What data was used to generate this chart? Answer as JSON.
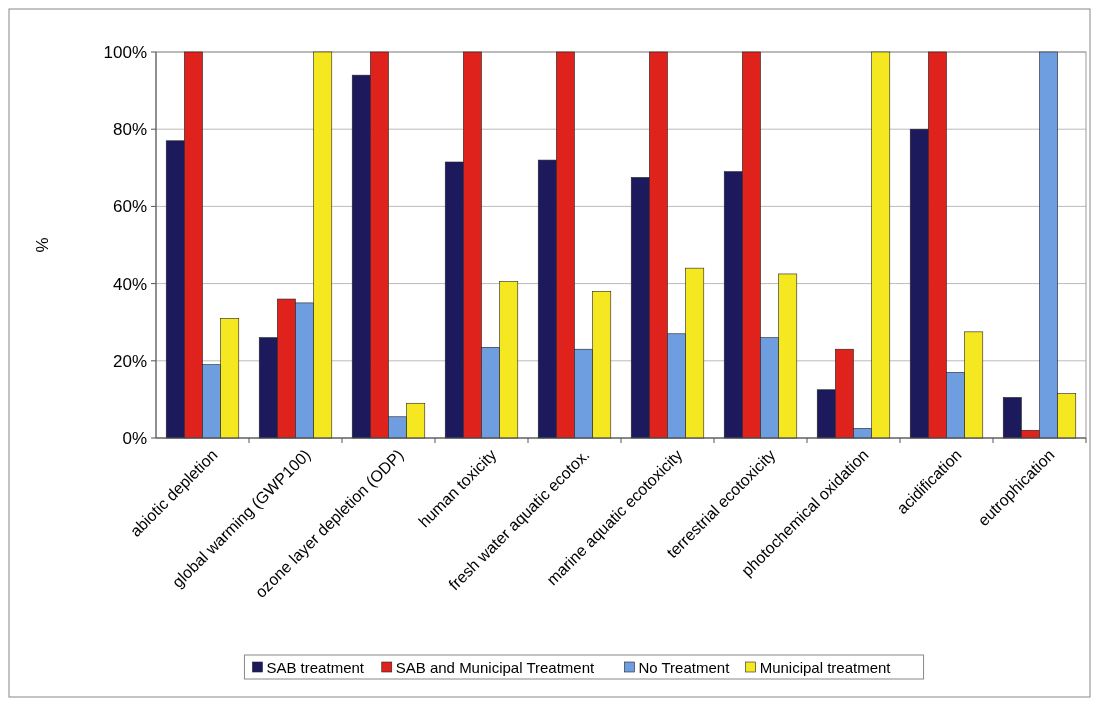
{
  "chart_data": {
    "type": "bar",
    "ylabel": "%",
    "categories": [
      "abiotic depletion",
      "global warming (GWP100)",
      "ozone layer depletion (ODP)",
      "human toxicity",
      "fresh water aquatic ecotox.",
      "marine aquatic ecotoxicity",
      "terrestrial ecotoxicity",
      "photochemical oxidation",
      "acidification",
      "eutrophication"
    ],
    "series": [
      {
        "name": "SAB treatment",
        "color": "#1c1a5c",
        "values": [
          77,
          26,
          94,
          71.5,
          72,
          67.5,
          69,
          12.5,
          80,
          10.5
        ]
      },
      {
        "name": "SAB and Municipal Treatment",
        "color": "#e0221c",
        "values": [
          100,
          36,
          100,
          100,
          100,
          100,
          100,
          23,
          100,
          2
        ]
      },
      {
        "name": "No Treatment",
        "color": "#6f9ee0",
        "values": [
          19,
          35,
          5.5,
          23.5,
          23,
          27,
          26,
          2.5,
          17,
          100
        ]
      },
      {
        "name": "Municipal treatment",
        "color": "#f6e820",
        "values": [
          31,
          100,
          9,
          40.5,
          38,
          44,
          42.5,
          100,
          27.5,
          11.5
        ]
      }
    ],
    "ylim": [
      0,
      100
    ],
    "yticks": [
      {
        "value": 0,
        "label": "0%"
      },
      {
        "value": 20,
        "label": "20%"
      },
      {
        "value": 40,
        "label": "40%"
      },
      {
        "value": 60,
        "label": "60%"
      },
      {
        "value": 80,
        "label": "80%"
      },
      {
        "value": 100,
        "label": "100%"
      }
    ],
    "grid": "y",
    "legend": "bottom"
  }
}
